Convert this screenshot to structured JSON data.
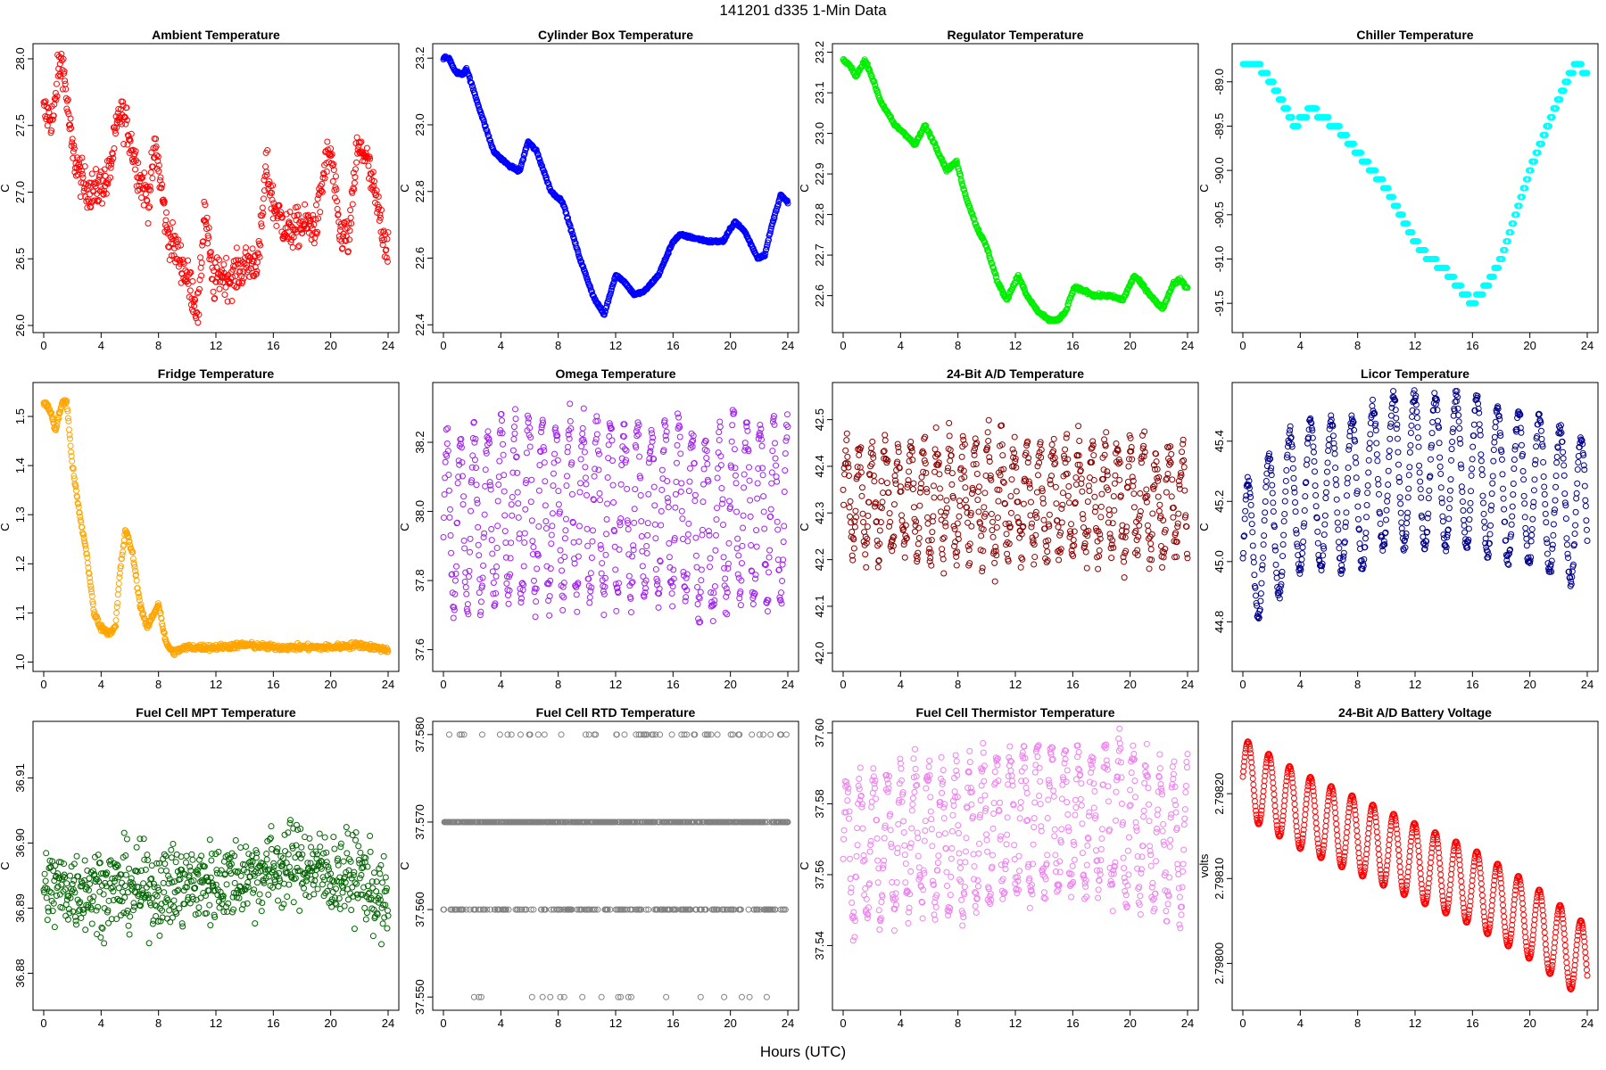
{
  "figure": {
    "title": "141201    d335    1-Min Data",
    "xlabel": "Hours (UTC)"
  },
  "chart_data": [
    {
      "type": "scatter",
      "title": "Ambient Temperature",
      "ylabel": "C",
      "color": "#ff0000",
      "xlim": [
        0,
        24
      ],
      "xticks": [
        0,
        4,
        8,
        12,
        16,
        20,
        24
      ],
      "ylim": [
        25.98,
        28.08
      ],
      "yticks": [
        26.0,
        26.5,
        27.0,
        27.5,
        28.0
      ],
      "ydec": 1,
      "x": [
        0,
        0.7,
        1.0,
        1.3,
        2.0,
        2.8,
        3.5,
        4.5,
        5.3,
        5.8,
        6.7,
        7.3,
        7.8,
        8.6,
        9.5,
        10.2,
        10.8,
        11.2,
        11.8,
        12.3,
        13.0,
        14.0,
        15.0,
        15.5,
        16.0,
        17.0,
        18.0,
        19.0,
        19.6,
        20.0,
        20.6,
        21.3,
        21.8,
        22.4,
        23.0,
        23.9
      ],
      "y": [
        27.6,
        27.55,
        27.9,
        28.0,
        27.3,
        27.05,
        27.0,
        27.1,
        27.6,
        27.5,
        27.1,
        26.95,
        27.35,
        26.7,
        26.5,
        26.3,
        26.1,
        26.9,
        26.3,
        26.4,
        26.35,
        26.45,
        26.5,
        27.2,
        26.9,
        26.7,
        26.75,
        26.75,
        27.2,
        27.3,
        26.7,
        26.65,
        27.3,
        27.3,
        27.0,
        26.6
      ],
      "noise": 0.14
    },
    {
      "type": "scatter",
      "title": "Cylinder Box Temperature",
      "ylabel": "C",
      "color": "#0000ff",
      "xlim": [
        0,
        24
      ],
      "xticks": [
        0,
        4,
        8,
        12,
        16,
        20,
        24
      ],
      "ylim": [
        22.39,
        23.23
      ],
      "yticks": [
        22.4,
        22.6,
        22.8,
        23.0,
        23.2
      ],
      "ydec": 1,
      "x": [
        0,
        0.4,
        0.8,
        1.3,
        1.6,
        2.5,
        3.5,
        4.5,
        5.3,
        5.9,
        6.5,
        7.5,
        8.3,
        9.5,
        10.5,
        11.2,
        12.0,
        12.6,
        13.3,
        14.0,
        15.0,
        16.0,
        16.5,
        17.5,
        18.5,
        19.5,
        20.3,
        21.0,
        21.9,
        22.4,
        22.9,
        23.5,
        23.9
      ],
      "y": [
        23.2,
        23.2,
        23.16,
        23.15,
        23.17,
        23.05,
        22.92,
        22.88,
        22.86,
        22.95,
        22.92,
        22.8,
        22.77,
        22.6,
        22.48,
        22.43,
        22.55,
        22.53,
        22.49,
        22.5,
        22.55,
        22.65,
        22.67,
        22.66,
        22.65,
        22.65,
        22.71,
        22.68,
        22.6,
        22.61,
        22.7,
        22.79,
        22.77
      ],
      "noise": 0.004
    },
    {
      "type": "scatter",
      "title": "Regulator Temperature",
      "ylabel": "C",
      "color": "#00ee00",
      "xlim": [
        0,
        24
      ],
      "xticks": [
        0,
        4,
        8,
        12,
        16,
        20,
        24
      ],
      "ylim": [
        22.52,
        23.21
      ],
      "yticks": [
        22.6,
        22.7,
        22.8,
        22.9,
        23.0,
        23.1,
        23.2
      ],
      "ydec": 1,
      "x": [
        0,
        0.4,
        0.9,
        1.5,
        1.8,
        2.6,
        3.6,
        4.3,
        5.0,
        5.7,
        6.3,
        7.2,
        7.9,
        8.5,
        9.3,
        10.0,
        10.8,
        11.4,
        12.2,
        12.8,
        13.6,
        14.3,
        15.0,
        15.5,
        16.1,
        17.0,
        17.5,
        18.5,
        19.5,
        20.3,
        21.0,
        21.9,
        22.3,
        23.0,
        23.5,
        23.9
      ],
      "y": [
        23.18,
        23.17,
        23.14,
        23.18,
        23.16,
        23.08,
        23.02,
        23.0,
        22.97,
        23.02,
        22.98,
        22.91,
        22.93,
        22.85,
        22.77,
        22.72,
        22.63,
        22.59,
        22.65,
        22.6,
        22.56,
        22.54,
        22.54,
        22.56,
        22.62,
        22.61,
        22.6,
        22.6,
        22.59,
        22.65,
        22.62,
        22.58,
        22.57,
        22.63,
        22.64,
        22.62
      ],
      "noise": 0.004
    },
    {
      "type": "scatter",
      "title": "Chiller Temperature",
      "ylabel": "C",
      "color": "#00ffff",
      "xlim": [
        0,
        24
      ],
      "xticks": [
        0,
        4,
        8,
        12,
        16,
        20,
        24
      ],
      "ylim": [
        -91.78,
        -88.62
      ],
      "yticks": [
        -91.5,
        -91.0,
        -90.5,
        -90.0,
        -89.5,
        -89.0
      ],
      "ydec": 1,
      "x": [
        0,
        1.0,
        2.0,
        3.0,
        3.6,
        4.2,
        4.8,
        5.5,
        6.5,
        8.0,
        9.0,
        10.0,
        11.0,
        12.0,
        13.0,
        14.0,
        15.0,
        15.5,
        16.0,
        16.5,
        17.0,
        18.0,
        19.0,
        20.0,
        21.0,
        22.0,
        22.8,
        23.3,
        23.9
      ],
      "y": [
        -88.8,
        -88.8,
        -89.0,
        -89.3,
        -89.5,
        -89.4,
        -89.3,
        -89.4,
        -89.5,
        -89.8,
        -90.0,
        -90.2,
        -90.5,
        -90.8,
        -91.0,
        -91.1,
        -91.3,
        -91.4,
        -91.5,
        -91.4,
        -91.3,
        -91.0,
        -90.5,
        -90.0,
        -89.6,
        -89.2,
        -88.9,
        -88.8,
        -88.9
      ],
      "noise": 0.0,
      "quant": 0.1
    },
    {
      "type": "scatter",
      "title": "Fridge Temperature",
      "ylabel": "C",
      "color": "#ffa500",
      "xlim": [
        0,
        24
      ],
      "xticks": [
        0,
        4,
        8,
        12,
        16,
        20,
        24
      ],
      "ylim": [
        0.99,
        1.56
      ],
      "yticks": [
        1.0,
        1.1,
        1.2,
        1.3,
        1.4,
        1.5
      ],
      "ydec": 1,
      "x": [
        0,
        0.5,
        0.8,
        1.3,
        1.6,
        2.0,
        2.5,
        3.0,
        3.5,
        4.0,
        4.5,
        5.0,
        5.3,
        5.7,
        6.2,
        6.7,
        7.2,
        7.7,
        8.0,
        8.5,
        9.0,
        10.0,
        12.0,
        14.0,
        16.0,
        18.0,
        20.0,
        22.0,
        23.9
      ],
      "y": [
        1.53,
        1.51,
        1.47,
        1.53,
        1.53,
        1.4,
        1.3,
        1.22,
        1.1,
        1.07,
        1.06,
        1.07,
        1.18,
        1.27,
        1.22,
        1.12,
        1.07,
        1.1,
        1.12,
        1.04,
        1.02,
        1.03,
        1.03,
        1.035,
        1.03,
        1.03,
        1.03,
        1.035,
        1.025
      ],
      "noise": 0.006
    },
    {
      "type": "scatter",
      "title": "Omega Temperature",
      "ylabel": "C",
      "color": "#a020f0",
      "xlim": [
        0,
        24
      ],
      "xticks": [
        0,
        4,
        8,
        12,
        16,
        20,
        24
      ],
      "ylim": [
        37.55,
        38.36
      ],
      "yticks": [
        37.6,
        37.8,
        38.0,
        38.2
      ],
      "ydec": 1,
      "x": [
        0,
        4,
        8,
        12,
        16,
        17,
        18,
        19,
        20,
        21,
        22,
        23,
        24
      ],
      "y": [
        37.95,
        38.0,
        38.0,
        38.0,
        38.0,
        38.0,
        37.95,
        37.95,
        38.0,
        38.0,
        38.0,
        38.0,
        38.0
      ],
      "osc": {
        "amp": 0.25,
        "period": 0.95,
        "noise": 0.05
      }
    },
    {
      "type": "scatter",
      "title": "24-Bit A/D Temperature",
      "ylabel": "C",
      "color": "#8b0000",
      "xlim": [
        0,
        24
      ],
      "xticks": [
        0,
        4,
        8,
        12,
        16,
        20,
        24
      ],
      "ylim": [
        41.97,
        42.57
      ],
      "yticks": [
        42.0,
        42.1,
        42.2,
        42.3,
        42.4,
        42.5
      ],
      "ydec": 1,
      "x": [
        0,
        4,
        8,
        12,
        16,
        20,
        24
      ],
      "y": [
        42.33,
        42.33,
        42.33,
        42.33,
        42.33,
        42.33,
        42.33
      ],
      "osc": {
        "amp": 0.11,
        "period": 0.9,
        "noise": 0.05
      }
    },
    {
      "type": "scatter",
      "title": "Licor Temperature",
      "ylabel": "C",
      "color": "#00008b",
      "xlim": [
        0,
        24
      ],
      "xticks": [
        0,
        4,
        8,
        12,
        16,
        20,
        24
      ],
      "ylim": [
        44.65,
        45.58
      ],
      "yticks": [
        44.8,
        45.0,
        45.2,
        45.4
      ],
      "ydec": 1,
      "x": [
        0,
        4,
        8,
        10,
        12,
        16,
        18,
        20,
        22,
        24
      ],
      "y": [
        45.0,
        45.22,
        45.22,
        45.3,
        45.3,
        45.3,
        45.25,
        45.25,
        45.2,
        45.15
      ],
      "osc": {
        "amp": 0.25,
        "period": 1.45,
        "noise": 0.02
      }
    },
    {
      "type": "scatter",
      "title": "Fuel Cell MPT Temperature",
      "ylabel": "C",
      "color": "#006400",
      "xlim": [
        0,
        24
      ],
      "xticks": [
        0,
        4,
        8,
        12,
        16,
        20,
        24
      ],
      "ylim": [
        36.875,
        36.918
      ],
      "yticks": [
        36.88,
        36.89,
        36.9,
        36.91
      ],
      "ydec": 2,
      "x": [
        0,
        4,
        8,
        12,
        16,
        18,
        20,
        22,
        24
      ],
      "y": [
        36.893,
        36.893,
        36.893,
        36.894,
        36.896,
        36.897,
        36.895,
        36.895,
        36.89
      ],
      "noise": 0.006
    },
    {
      "type": "scatter",
      "title": "Fuel Cell RTD Temperature",
      "ylabel": "C",
      "color": "#808080",
      "xlim": [
        0,
        24
      ],
      "xticks": [
        0,
        4,
        8,
        12,
        16,
        20,
        24
      ],
      "ylim": [
        37.549,
        37.581
      ],
      "yticks": [
        37.55,
        37.56,
        37.57,
        37.58
      ],
      "ydec": 3,
      "levels": [
        37.55,
        37.56,
        37.57,
        37.58
      ],
      "weights": [
        0.02,
        0.3,
        0.6,
        0.08
      ]
    },
    {
      "type": "scatter",
      "title": "Fuel Cell Thermistor Temperature",
      "ylabel": "C",
      "color": "#ee82ee",
      "xlim": [
        0,
        24
      ],
      "xticks": [
        0,
        4,
        8,
        12,
        16,
        20,
        24
      ],
      "ylim": [
        37.523,
        37.602
      ],
      "yticks": [
        37.54,
        37.56,
        37.58,
        37.6
      ],
      "ydec": 2,
      "x": [
        0,
        4,
        8,
        12,
        16,
        18,
        20,
        22,
        24
      ],
      "y": [
        37.565,
        37.57,
        37.57,
        37.575,
        37.575,
        37.575,
        37.575,
        37.57,
        37.57
      ],
      "osc": {
        "amp": 0.02,
        "period": 0.95,
        "noise": 0.006
      }
    },
    {
      "type": "scatter",
      "title": "24-Bit A/D Battery Voltage",
      "ylabel": "volts",
      "color": "#ff0000",
      "xlim": [
        0,
        24
      ],
      "xticks": [
        0,
        4,
        8,
        12,
        16,
        20,
        24
      ],
      "ylim": [
        2.79795,
        2.79828
      ],
      "yticks": [
        2.798,
        2.7981,
        2.7982
      ],
      "ydec": 5,
      "x": [
        0,
        4,
        8,
        12,
        16,
        20,
        24
      ],
      "y": [
        2.79822,
        2.79818,
        2.79815,
        2.79812,
        2.79809,
        2.79805,
        2.798
      ],
      "osc": {
        "amp": 4.5e-05,
        "period": 1.45,
        "noise": 0.0
      }
    }
  ]
}
